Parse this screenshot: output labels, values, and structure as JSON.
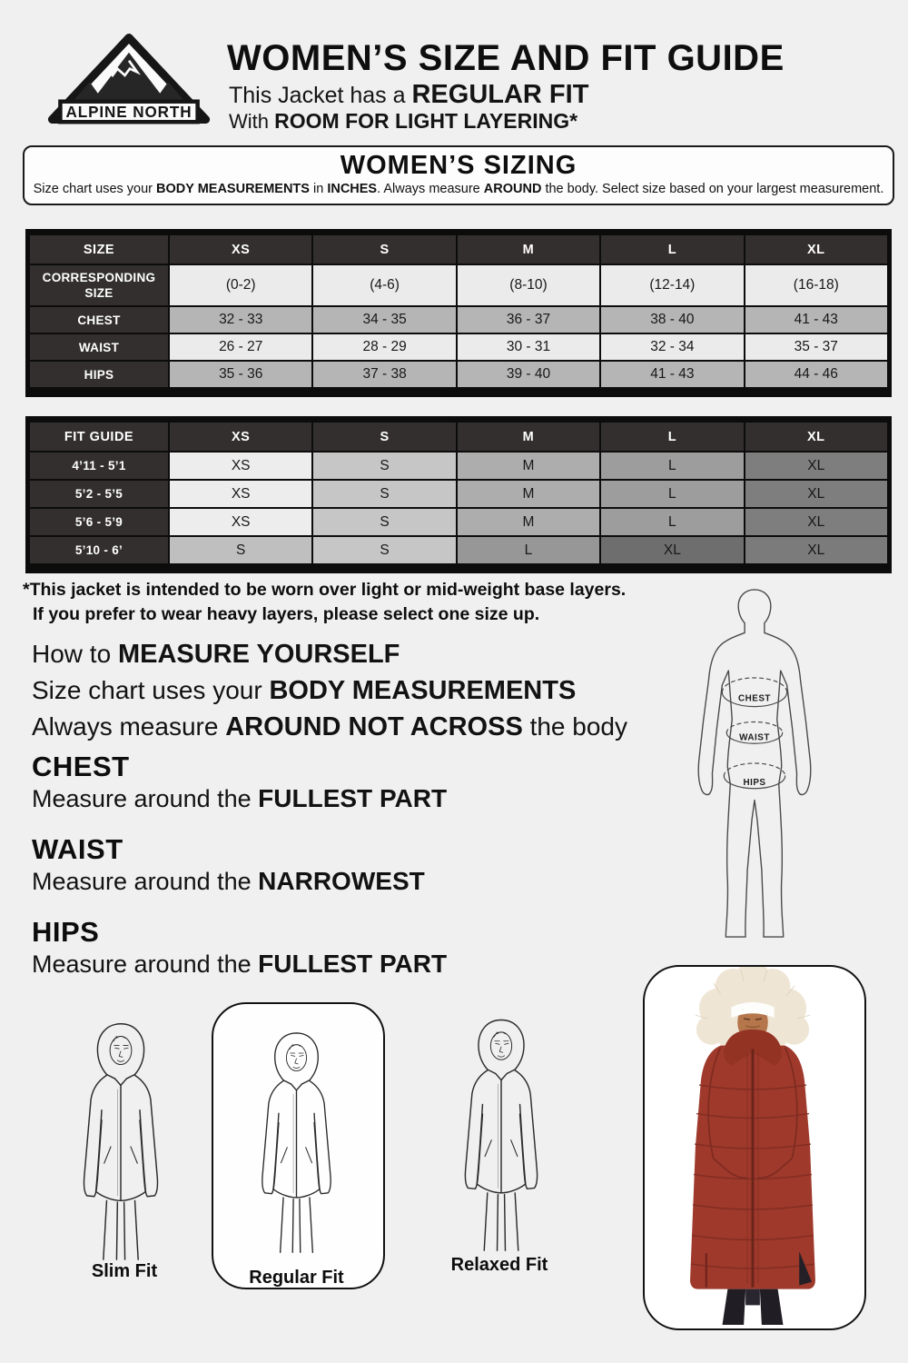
{
  "colors": {
    "page_bg": "#f0f0f0",
    "table_header_dark": "#332f2f",
    "table_border": "#0c0c0c",
    "light_cell": "#ebebeb",
    "gray_cell": "#b5b5b5",
    "jacket_red": "#9e392b"
  },
  "header": {
    "brand": "ALPINE NORTH",
    "title": "WOMEN’S SIZE AND FIT GUIDE",
    "subtitle1_parts": [
      {
        "t": "This Jacket has a ",
        "b": false
      },
      {
        "t": "REGULAR FIT",
        "b": true
      }
    ],
    "subtitle2_parts": [
      {
        "t": "With ",
        "b": false
      },
      {
        "t": "ROOM FOR LIGHT LAYERING*",
        "b": true
      }
    ]
  },
  "sizing_box": {
    "title": "WOMEN’S SIZING",
    "desc_parts": [
      {
        "t": "Size chart uses your ",
        "b": false
      },
      {
        "t": "BODY MEASUREMENTS",
        "b": true
      },
      {
        "t": " in ",
        "b": false
      },
      {
        "t": "INCHES",
        "b": true
      },
      {
        "t": ". Always measure ",
        "b": false
      },
      {
        "t": "AROUND",
        "b": true
      },
      {
        "t": " the body. Select size based on your largest measurement.",
        "b": false
      }
    ]
  },
  "size_table": {
    "headers": [
      "SIZE",
      "XS",
      "S",
      "M",
      "L",
      "XL"
    ],
    "rows": [
      {
        "label": "CORRESPONDING SIZE",
        "bg": "#ebebeb",
        "tall": true,
        "values": [
          "(0-2)",
          "(4-6)",
          "(8-10)",
          "(12-14)",
          "(16-18)"
        ]
      },
      {
        "label": "CHEST",
        "bg": "#b5b5b5",
        "tall": false,
        "values": [
          "32 - 33",
          "34 - 35",
          "36 - 37",
          "38 - 40",
          "41 - 43"
        ]
      },
      {
        "label": "WAIST",
        "bg": "#ebebeb",
        "tall": false,
        "values": [
          "26 - 27",
          "28 - 29",
          "30 - 31",
          "32 - 34",
          "35 - 37"
        ]
      },
      {
        "label": "HIPS",
        "bg": "#b5b5b5",
        "tall": false,
        "values": [
          "35 - 36",
          "37 - 38",
          "39 - 40",
          "41 - 43",
          "44 - 46"
        ]
      }
    ]
  },
  "fit_table": {
    "headers": [
      "FIT GUIDE",
      "XS",
      "S",
      "M",
      "L",
      "XL"
    ],
    "rows": [
      {
        "label": "4’11 - 5’1",
        "cells": [
          {
            "v": "XS",
            "bg": "#ededed"
          },
          {
            "v": "S",
            "bg": "#c6c6c6"
          },
          {
            "v": "M",
            "bg": "#adadad"
          },
          {
            "v": "L",
            "bg": "#9d9d9d"
          },
          {
            "v": "XL",
            "bg": "#7e7e7e"
          }
        ]
      },
      {
        "label": "5’2 - 5’5",
        "cells": [
          {
            "v": "XS",
            "bg": "#ededed"
          },
          {
            "v": "S",
            "bg": "#c6c6c6"
          },
          {
            "v": "M",
            "bg": "#adadad"
          },
          {
            "v": "L",
            "bg": "#9d9d9d"
          },
          {
            "v": "XL",
            "bg": "#7e7e7e"
          }
        ]
      },
      {
        "label": "5’6 - 5’9",
        "cells": [
          {
            "v": "XS",
            "bg": "#ededed"
          },
          {
            "v": "S",
            "bg": "#c6c6c6"
          },
          {
            "v": "M",
            "bg": "#adadad"
          },
          {
            "v": "L",
            "bg": "#9d9d9d"
          },
          {
            "v": "XL",
            "bg": "#7e7e7e"
          }
        ]
      },
      {
        "label": "5’10 - 6’",
        "cells": [
          {
            "v": "S",
            "bg": "#bfbfbf"
          },
          {
            "v": "S",
            "bg": "#c6c6c6"
          },
          {
            "v": "L",
            "bg": "#979797"
          },
          {
            "v": "XL",
            "bg": "#6e6e6e"
          },
          {
            "v": "XL",
            "bg": "#7b7b7b"
          }
        ]
      }
    ]
  },
  "note_lines": [
    "*This jacket is intended to be worn over light or mid-weight base layers.",
    "If you prefer to wear heavy layers, please select one size up."
  ],
  "measure_lines": {
    "line1": [
      {
        "t": "How to ",
        "b": false
      },
      {
        "t": "MEASURE YOURSELF",
        "b": true
      }
    ],
    "line2": [
      {
        "t": "Size chart uses your ",
        "b": false
      },
      {
        "t": "BODY MEASUREMENTS",
        "b": true
      }
    ],
    "line3": [
      {
        "t": "Always measure ",
        "b": false
      },
      {
        "t": "AROUND NOT ACROSS",
        "b": true
      },
      {
        "t": " the body",
        "b": false
      }
    ]
  },
  "measure_sections": [
    {
      "title": "CHEST",
      "parts": [
        {
          "t": "Measure around the ",
          "b": false
        },
        {
          "t": "FULLEST PART",
          "b": true
        }
      ]
    },
    {
      "title": "WAIST",
      "parts": [
        {
          "t": "Measure around the ",
          "b": false
        },
        {
          "t": "NARROWEST",
          "b": true
        }
      ]
    },
    {
      "title": "HIPS",
      "parts": [
        {
          "t": "Measure around the ",
          "b": false
        },
        {
          "t": "FULLEST PART",
          "b": true
        }
      ]
    }
  ],
  "body_diagram_labels": {
    "chest": "CHEST",
    "waist": "WAIST",
    "hips": "HIPS"
  },
  "fit_labels": {
    "slim": "Slim Fit",
    "regular": "Regular Fit",
    "relaxed": "Relaxed Fit"
  },
  "icons": {
    "logo": "alpine-north-mountain-badge",
    "body_diagram": "body-measurement-silhouette",
    "fit_figure": "hooded-jacket-line-figure",
    "photo": "woman-in-red-long-puffer-coat"
  }
}
